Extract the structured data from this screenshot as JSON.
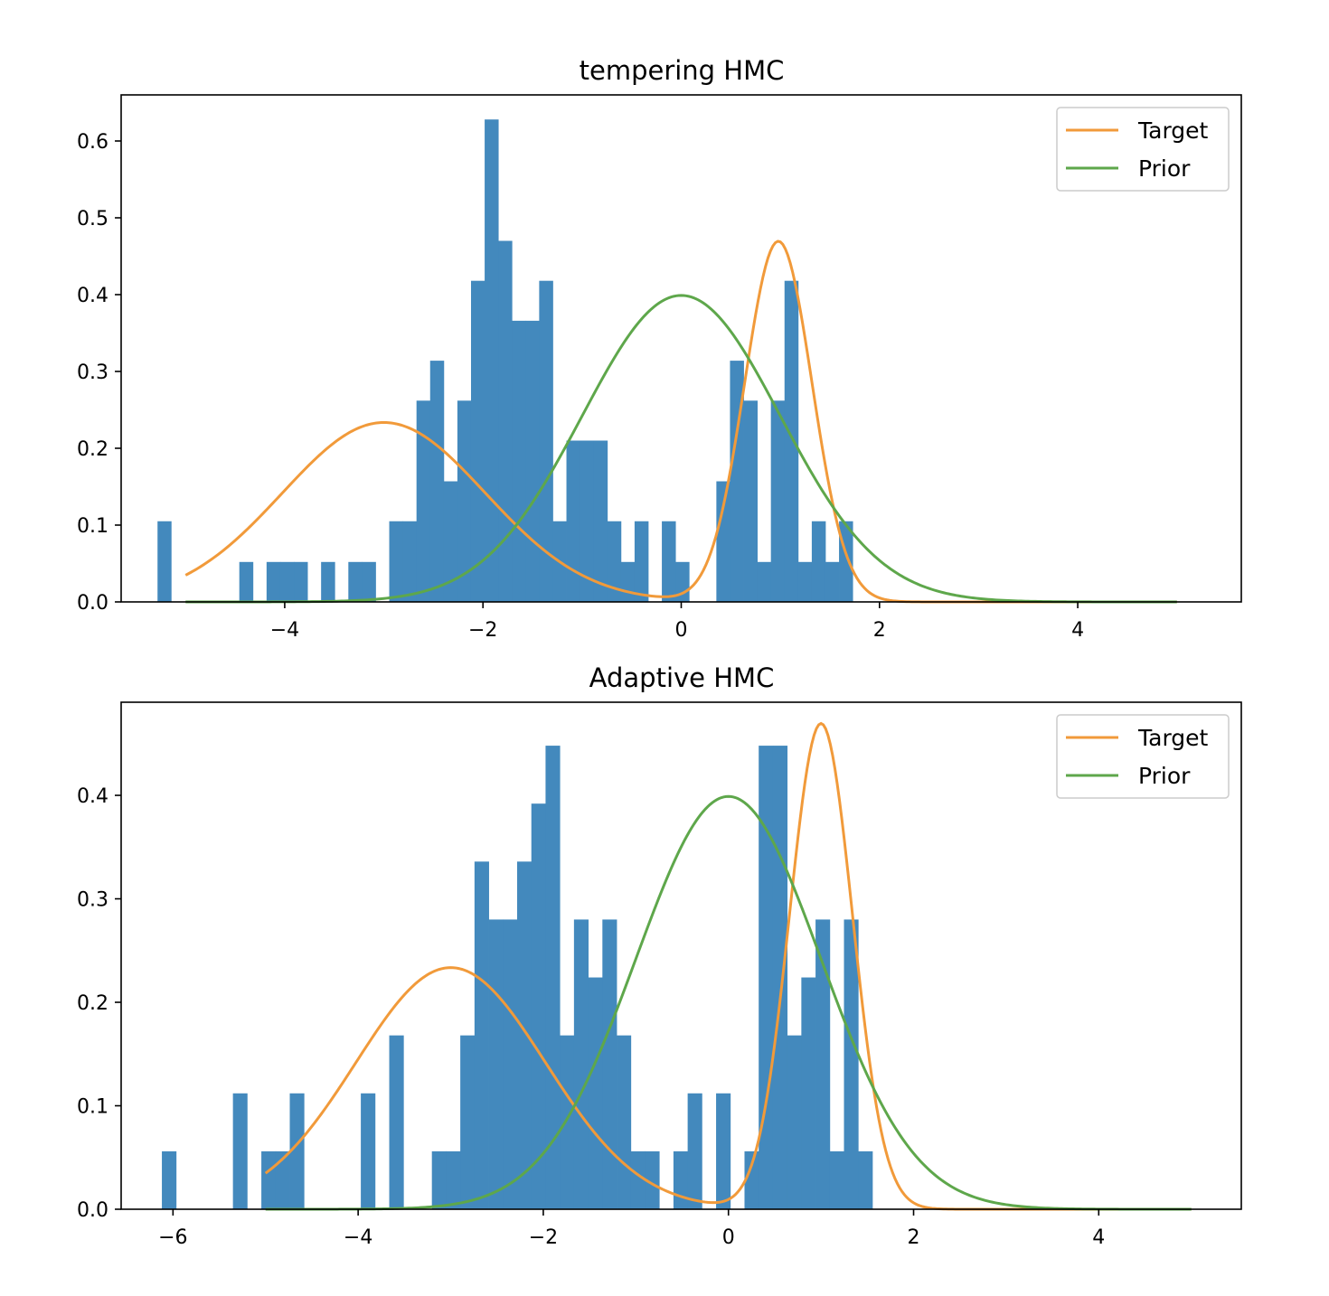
{
  "chart_data": [
    {
      "type": "bar",
      "title": "tempering HMC",
      "xlabel": "",
      "ylabel": "",
      "xlim": [
        -5.65,
        5.65
      ],
      "ylim": [
        0,
        0.66
      ],
      "xticks": [
        -4,
        -2,
        0,
        2,
        4
      ],
      "xtick_labels": [
        "−4",
        "−2",
        "0",
        "2",
        "4"
      ],
      "yticks": [
        0.0,
        0.1,
        0.2,
        0.3,
        0.4,
        0.5,
        0.6
      ],
      "ytick_labels": [
        "0.0",
        "0.1",
        "0.2",
        "0.3",
        "0.4",
        "0.5",
        "0.6"
      ],
      "legend": {
        "position": "top-right",
        "entries": [
          "Target",
          "Prior"
        ]
      },
      "histogram": {
        "start": -5.283,
        "bin_width": 0.1375,
        "color": "#4389bd",
        "heights": [
          0.105,
          0,
          0,
          0,
          0,
          0,
          0.052,
          0,
          0.052,
          0.052,
          0.052,
          0,
          0.052,
          0,
          0.052,
          0.052,
          0,
          0.105,
          0.105,
          0.262,
          0.314,
          0.157,
          0.262,
          0.418,
          0.628,
          0.47,
          0.366,
          0.366,
          0.418,
          0.105,
          0.21,
          0.21,
          0.21,
          0.105,
          0.052,
          0.105,
          0,
          0.105,
          0.052,
          0,
          0,
          0.157,
          0.314,
          0.262,
          0.052,
          0.262,
          0.418,
          0.052,
          0.105,
          0.052,
          0.105
        ]
      },
      "series": [
        {
          "name": "Target",
          "color": "#f19a3a",
          "x_range": [
            -5,
            5
          ],
          "mixture": [
            {
              "weight": 0.6,
              "mean": -3,
              "sd": 1.025
            },
            {
              "weight": 0.4,
              "mean": 0.98,
              "sd": 0.34
            }
          ]
        },
        {
          "name": "Prior",
          "color": "#5ea74b",
          "x_range": [
            -5,
            5
          ],
          "mixture": [
            {
              "weight": 1,
              "mean": 0,
              "sd": 1
            }
          ]
        }
      ]
    },
    {
      "type": "bar",
      "title": "Adaptive HMC",
      "xlabel": "",
      "ylabel": "",
      "xlim": [
        -6.56,
        5.54
      ],
      "ylim": [
        0,
        0.49
      ],
      "xticks": [
        -6,
        -4,
        -2,
        0,
        2,
        4
      ],
      "xtick_labels": [
        "−6",
        "−4",
        "−2",
        "0",
        "2",
        "4"
      ],
      "yticks": [
        0.0,
        0.1,
        0.2,
        0.3,
        0.4
      ],
      "ytick_labels": [
        "0.0",
        "0.1",
        "0.2",
        "0.3",
        "0.4"
      ],
      "legend": {
        "position": "top-right",
        "entries": [
          "Target",
          "Prior"
        ]
      },
      "histogram": {
        "start": -6.12,
        "bin_width": 0.1535,
        "color": "#4389bd",
        "heights": [
          0.056,
          0,
          0,
          0,
          0,
          0.112,
          0,
          0.056,
          0.056,
          0.112,
          0,
          0,
          0,
          0,
          0.112,
          0,
          0.168,
          0,
          0,
          0.056,
          0.056,
          0.168,
          0.336,
          0.28,
          0.28,
          0.336,
          0.392,
          0.448,
          0.168,
          0.28,
          0.224,
          0.28,
          0.168,
          0.056,
          0.056,
          0,
          0.056,
          0.112,
          0,
          0.112,
          0,
          0.056,
          0.448,
          0.448,
          0.168,
          0.224,
          0.28,
          0.056,
          0.28,
          0.056
        ]
      },
      "series": [
        {
          "name": "Target",
          "color": "#f19a3a",
          "x_range": [
            -5,
            5
          ],
          "mixture": [
            {
              "weight": 0.6,
              "mean": -3,
              "sd": 1.025
            },
            {
              "weight": 0.4,
              "mean": 1.0,
              "sd": 0.34
            }
          ]
        },
        {
          "name": "Prior",
          "color": "#5ea74b",
          "x_range": [
            -5,
            5
          ],
          "mixture": [
            {
              "weight": 1,
              "mean": 0,
              "sd": 1
            }
          ]
        }
      ]
    }
  ]
}
